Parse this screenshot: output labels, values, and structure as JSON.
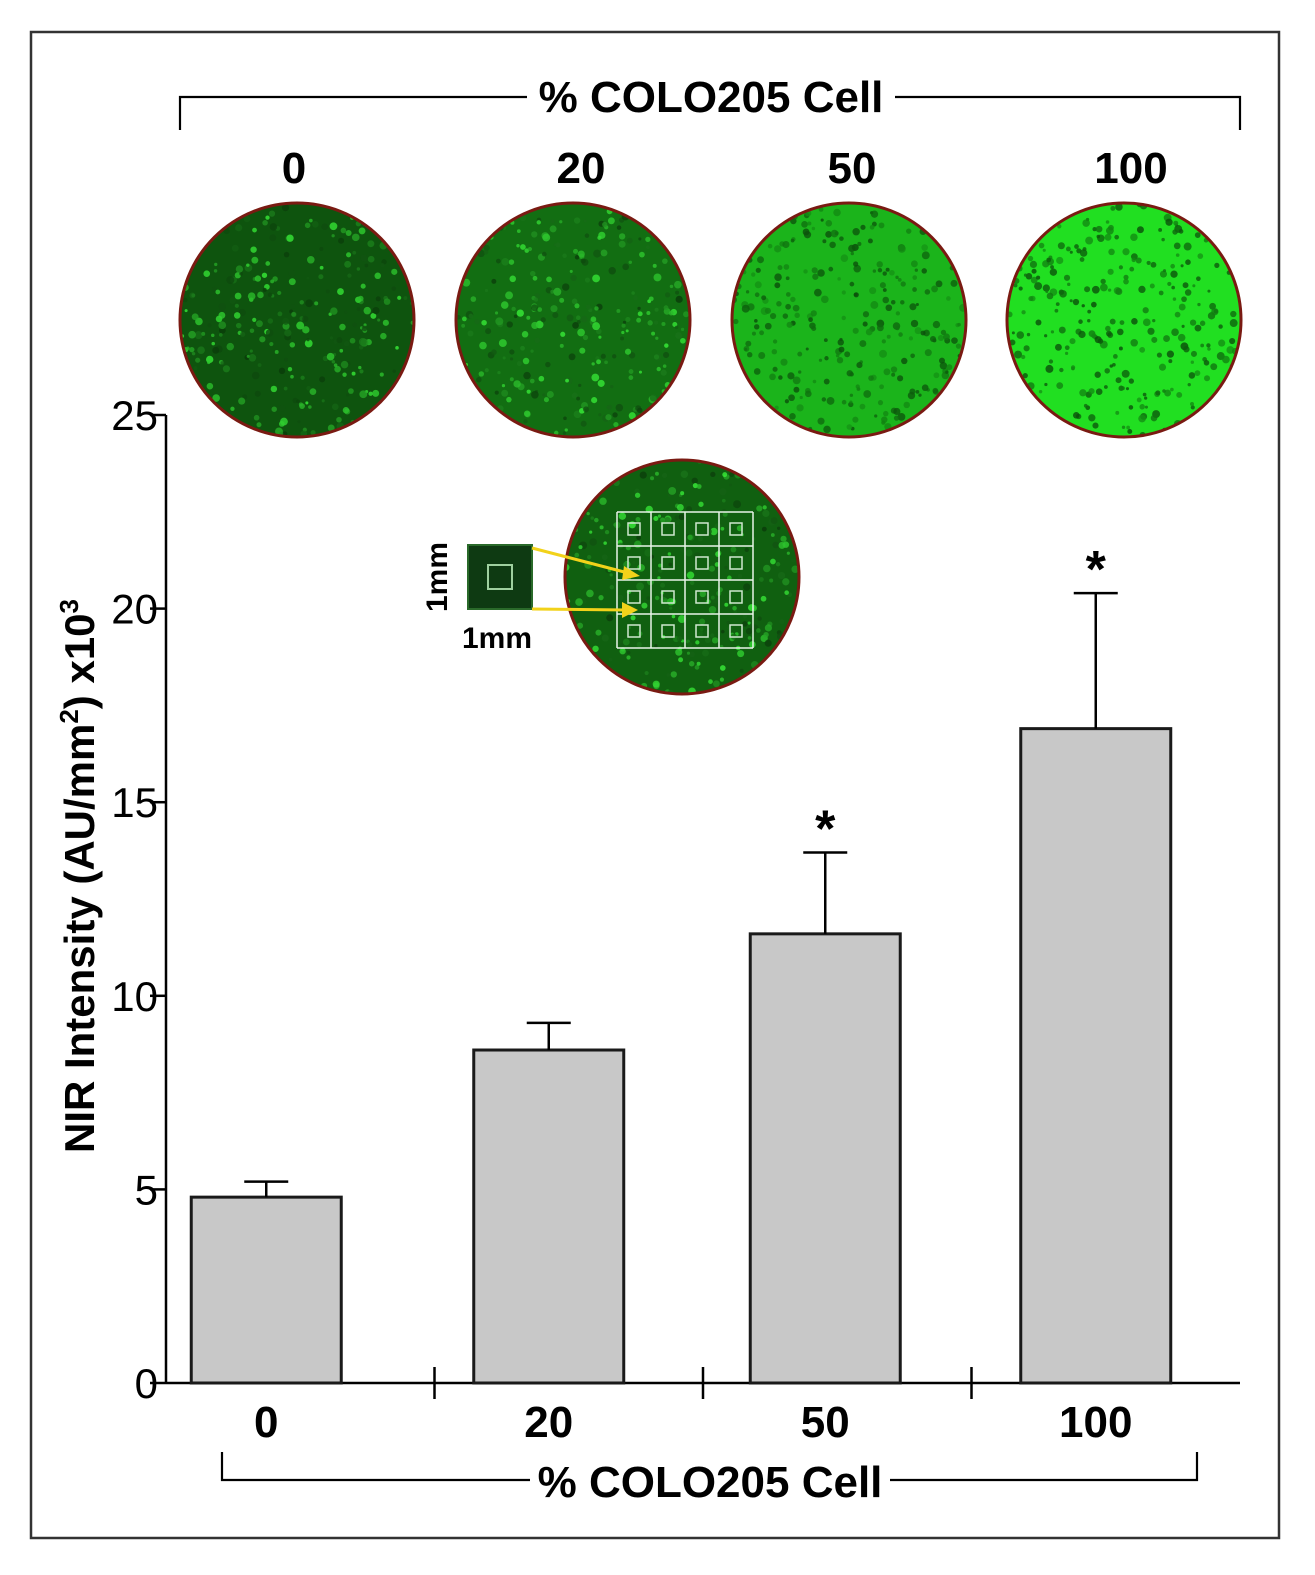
{
  "colors": {
    "bar_fill": "#c8c8c8",
    "bar_stroke": "#1a1a1a",
    "well_green_bright": "#22e822",
    "well_green_dark": "#0b3a0b",
    "well_rim": "#7a1a12",
    "callout_arrow": "#f2d21a"
  },
  "top_panel": {
    "group_label": "% COLO205 Cell",
    "wells": [
      {
        "label": "0",
        "brightness": 0.15
      },
      {
        "label": "20",
        "brightness": 0.3
      },
      {
        "label": "50",
        "brightness": 0.7
      },
      {
        "label": "100",
        "brightness": 0.95
      }
    ]
  },
  "inset": {
    "height_label": "1mm",
    "width_label": "1mm",
    "grid_rows": 4,
    "grid_cols": 4
  },
  "chart_data": {
    "type": "bar",
    "categories": [
      "0",
      "20",
      "50",
      "100"
    ],
    "values": [
      4.8,
      8.6,
      11.6,
      16.9
    ],
    "errors": [
      0.4,
      0.7,
      2.1,
      3.5
    ],
    "significance": [
      "",
      "",
      "*",
      "*"
    ],
    "ylabel_main": "NIR Intensity (AU/mm",
    "ylabel_sup1": "2",
    "ylabel_mid": ") x10",
    "ylabel_sup2": "3",
    "xlabel": "% COLO205 Cell",
    "ylim": [
      0,
      25
    ],
    "yticks": [
      "0",
      "5",
      "10",
      "15",
      "20",
      "25"
    ],
    "grid": false
  }
}
